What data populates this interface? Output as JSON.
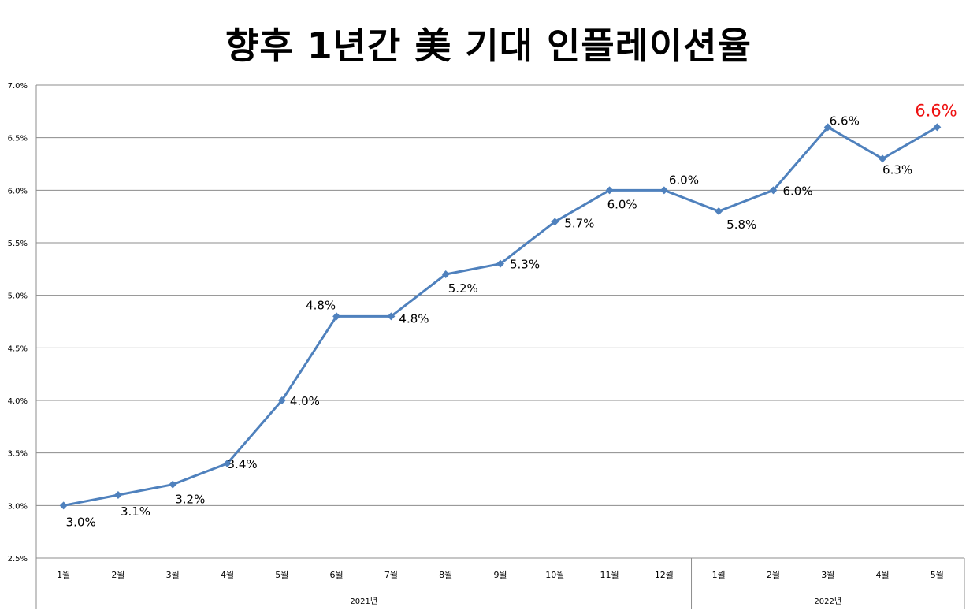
{
  "title": "향후 1년간 美 기대 인플레이션율",
  "chart_data": {
    "type": "line",
    "title": "향후 1년간 美 기대 인플레이션율",
    "categories": [
      "1월",
      "2월",
      "3월",
      "4월",
      "5월",
      "6월",
      "7월",
      "8월",
      "9월",
      "10월",
      "11월",
      "12월",
      "1월",
      "2월",
      "3월",
      "4월",
      "5월"
    ],
    "groups": [
      {
        "label": "2021년",
        "count": 12
      },
      {
        "label": "2022년",
        "count": 5
      }
    ],
    "series": [
      {
        "values": [
          3.0,
          3.1,
          3.2,
          3.4,
          4.0,
          4.8,
          4.8,
          5.2,
          5.3,
          5.7,
          6.0,
          6.0,
          5.8,
          6.0,
          6.6,
          6.3,
          6.6
        ]
      }
    ],
    "data_labels": [
      "3.0%",
      "3.1%",
      "3.2%",
      "3.4%",
      "4.0%",
      "4.8%",
      "4.8%",
      "5.2%",
      "5.3%",
      "5.7%",
      "6.0%",
      "6.0%",
      "5.8%",
      "6.0%",
      "6.6%",
      "6.3%",
      "6.6%"
    ],
    "highlight_last_label_color": "#ee1111",
    "line_color": "#4f81bd",
    "y_ticks": [
      "2.5%",
      "3.0%",
      "3.5%",
      "4.0%",
      "4.5%",
      "5.0%",
      "5.5%",
      "6.0%",
      "6.5%",
      "7.0%"
    ],
    "ylim": [
      2.5,
      7.0
    ],
    "grid": true,
    "legend": "none"
  }
}
